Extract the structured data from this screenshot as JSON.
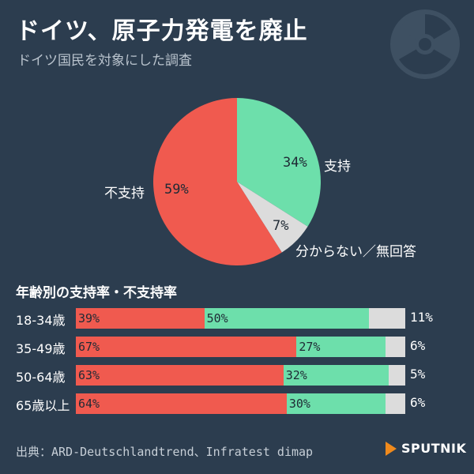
{
  "header": {
    "title": "ドイツ、原子力発電を廃止",
    "subtitle": "ドイツ国民を対象にした調査"
  },
  "icons": {
    "header_icon": "radiation-icon",
    "logo_icon": "sputnik-logo"
  },
  "colors": {
    "background": "#2c3d4f",
    "oppose": "#f05a4f",
    "support": "#6ddfab",
    "unknown": "#dcdcdc"
  },
  "chart_data": [
    {
      "type": "pie",
      "slices": [
        {
          "label": "支持",
          "value": 34,
          "value_label": "34%"
        },
        {
          "label": "分からない／無回答",
          "value": 7,
          "value_label": "7%"
        },
        {
          "label": "不支持",
          "value": 59,
          "value_label": "59%"
        }
      ]
    },
    {
      "type": "bar",
      "stacked": true,
      "orientation": "horizontal",
      "title": "年齢別の支持率・不支持率",
      "categories": [
        "18-34歳",
        "35-49歳",
        "50-64歳",
        "65歳以上"
      ],
      "series": [
        {
          "values": [
            39,
            67,
            63,
            64
          ],
          "labels": [
            "39%",
            "67%",
            "63%",
            "64%"
          ]
        },
        {
          "values": [
            50,
            27,
            32,
            30
          ],
          "labels": [
            "50%",
            "27%",
            "32%",
            "30%"
          ]
        },
        {
          "values": [
            11,
            6,
            5,
            6
          ],
          "labels": [
            "11%",
            "6%",
            "5%",
            "6%"
          ]
        }
      ]
    }
  ],
  "footer": {
    "source": "出典：ARD-Deutschlandtrend、Infratest dimap",
    "logo_text": "SPUTNIK"
  }
}
